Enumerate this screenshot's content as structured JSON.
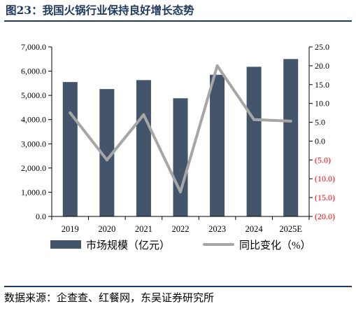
{
  "figure": {
    "title": "图23：我国火锅行业保持良好增长态势",
    "source": "数据来源：企查查、红餐网，东吴证券研究所"
  },
  "colors": {
    "bar": "#44546a",
    "line": "#a6a6a6",
    "title": "#1f3a60",
    "negative_tick": "#ff0000"
  },
  "chart_data": {
    "type": "bar",
    "categories": [
      "2019",
      "2020",
      "2021",
      "2022",
      "2023",
      "2024",
      "2025E"
    ],
    "series": [
      {
        "name": "市场规模（亿元）",
        "type": "bar",
        "axis": "left",
        "values": [
          5550,
          5260,
          5630,
          4880,
          5850,
          6180,
          6500
        ]
      },
      {
        "name": "同比变化（%）",
        "type": "line",
        "axis": "right",
        "values": [
          7.5,
          -5.0,
          7.0,
          -13.5,
          20.0,
          5.7,
          5.3
        ]
      }
    ],
    "y_left": {
      "ylim": [
        0,
        7000
      ],
      "ticks": [
        0,
        1000,
        2000,
        3000,
        4000,
        5000,
        6000,
        7000
      ],
      "tick_labels": [
        "0.0",
        "1,000.0",
        "2,000.0",
        "3,000.0",
        "4,000.0",
        "5,000.0",
        "6,000.0",
        "7,000.0"
      ]
    },
    "y_right": {
      "ylim": [
        -20,
        25
      ],
      "ticks": [
        25,
        20,
        15,
        10,
        5,
        0,
        -5,
        -10,
        -15,
        -20
      ],
      "tick_labels": [
        "25.0",
        "20.0",
        "15.0",
        "10.0",
        "5.0",
        "0.0",
        "(5.0)",
        "(10.0)",
        "(15.0)",
        "(20.0)"
      ]
    },
    "grid": false,
    "legend_position": "bottom"
  }
}
